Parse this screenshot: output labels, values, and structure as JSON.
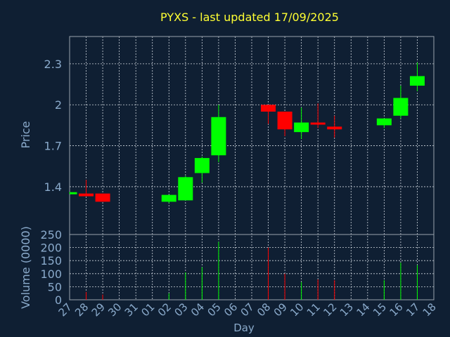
{
  "colors": {
    "background": "#0f1f33",
    "plot_border": "#9aa3ad",
    "grid": "#cfd6de",
    "axis_text": "#8aaacb",
    "title": "#ffff33",
    "up": "#00ff00",
    "down": "#ff0000"
  },
  "chart_data": {
    "type": "candlestick",
    "title": "PYXS - last updated 17/09/2025",
    "xlabel": "Day",
    "x_ticks": [
      "27",
      "28",
      "29",
      "30",
      "31",
      "01",
      "02",
      "03",
      "04",
      "05",
      "06",
      "07",
      "08",
      "09",
      "10",
      "11",
      "12",
      "13",
      "14",
      "15",
      "16",
      "17",
      "18"
    ],
    "price": {
      "ylabel": "Price",
      "ylim": [
        1.05,
        2.5
      ],
      "y_ticks": [
        "1.4",
        "1.7",
        "2",
        "2.3"
      ],
      "y_tick_values": [
        1.4,
        1.7,
        2.0,
        2.3
      ],
      "candles": [
        {
          "day": "27",
          "open": 1.35,
          "high": 1.36,
          "low": 1.35,
          "close": 1.36
        },
        {
          "day": "28",
          "open": 1.35,
          "high": 1.45,
          "low": 1.33,
          "close": 1.33
        },
        {
          "day": "29",
          "open": 1.35,
          "high": 1.35,
          "low": 1.29,
          "close": 1.29
        },
        {
          "day": "02",
          "open": 1.29,
          "high": 1.34,
          "low": 1.28,
          "close": 1.34
        },
        {
          "day": "03",
          "open": 1.3,
          "high": 1.48,
          "low": 1.3,
          "close": 1.47
        },
        {
          "day": "04",
          "open": 1.5,
          "high": 1.62,
          "low": 1.43,
          "close": 1.61
        },
        {
          "day": "05",
          "open": 1.63,
          "high": 2.0,
          "low": 1.58,
          "close": 1.91
        },
        {
          "day": "08",
          "open": 2.0,
          "high": 2.0,
          "low": 1.86,
          "close": 1.95
        },
        {
          "day": "09",
          "open": 1.95,
          "high": 1.95,
          "low": 1.77,
          "close": 1.82
        },
        {
          "day": "10",
          "open": 1.8,
          "high": 1.98,
          "low": 1.75,
          "close": 1.87
        },
        {
          "day": "11",
          "open": 1.87,
          "high": 2.01,
          "low": 1.83,
          "close": 1.86
        },
        {
          "day": "12",
          "open": 1.84,
          "high": 1.92,
          "low": 1.76,
          "close": 1.82
        },
        {
          "day": "15",
          "open": 1.85,
          "high": 1.9,
          "low": 1.83,
          "close": 1.9
        },
        {
          "day": "16",
          "open": 1.92,
          "high": 2.14,
          "low": 1.9,
          "close": 2.05
        },
        {
          "day": "17",
          "open": 2.14,
          "high": 2.31,
          "low": 2.1,
          "close": 2.21
        }
      ]
    },
    "volume": {
      "ylabel": "Volume (0000)",
      "ylim": [
        0,
        250
      ],
      "y_ticks": [
        "0",
        "50",
        "100",
        "150",
        "200",
        "250"
      ],
      "y_tick_values": [
        0,
        50,
        100,
        150,
        200,
        250
      ],
      "bars": [
        {
          "day": "28",
          "value": 30,
          "dir": "down"
        },
        {
          "day": "29",
          "value": 20,
          "dir": "down"
        },
        {
          "day": "02",
          "value": 25,
          "dir": "up"
        },
        {
          "day": "03",
          "value": 105,
          "dir": "up"
        },
        {
          "day": "04",
          "value": 125,
          "dir": "up"
        },
        {
          "day": "05",
          "value": 222,
          "dir": "up"
        },
        {
          "day": "08",
          "value": 200,
          "dir": "down"
        },
        {
          "day": "09",
          "value": 100,
          "dir": "down"
        },
        {
          "day": "10",
          "value": 68,
          "dir": "up"
        },
        {
          "day": "11",
          "value": 78,
          "dir": "down"
        },
        {
          "day": "12",
          "value": 75,
          "dir": "down"
        },
        {
          "day": "15",
          "value": 75,
          "dir": "up"
        },
        {
          "day": "16",
          "value": 142,
          "dir": "up"
        },
        {
          "day": "17",
          "value": 133,
          "dir": "up"
        }
      ]
    }
  }
}
